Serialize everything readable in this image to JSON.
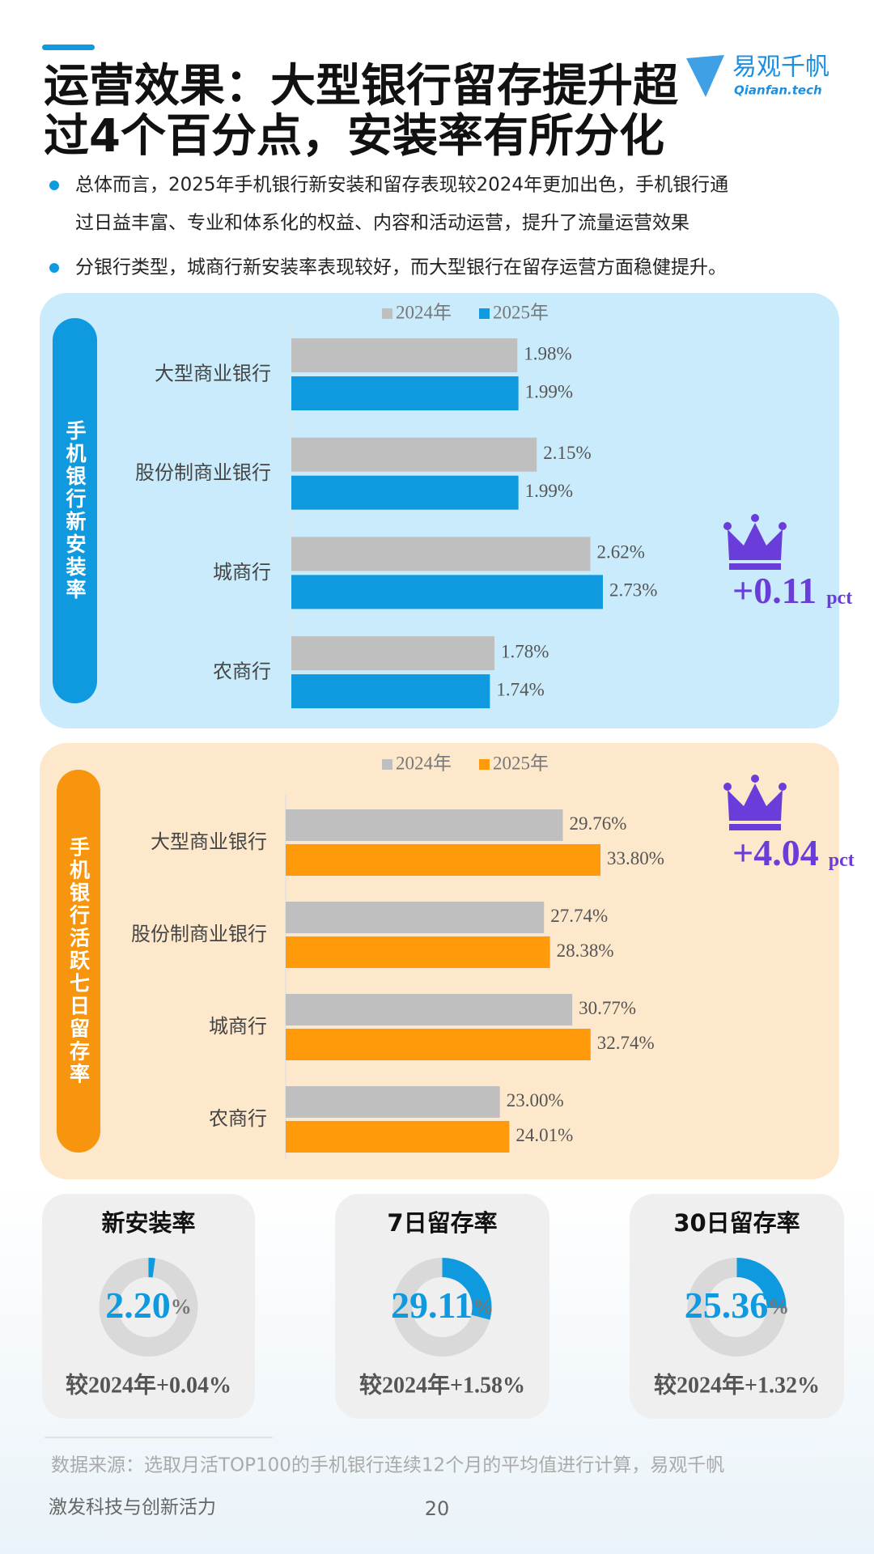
{
  "header": {
    "title_lines": [
      "运营效果：大型银行留存提升超",
      "过4个百分点，安装率有所分化"
    ],
    "logo_name": "易观千帆",
    "logo_sub": "Qianfan.tech"
  },
  "bullets": [
    [
      "总体而言，2025年手机银行新安装和留存表现较2024年更加出色，手机银行通",
      "过日益丰富、专业和体系化的权益、内容和活动运营，提升了流量运营效果"
    ],
    [
      "分银行类型，城商行新安装率表现较好，而大型银行在留存运营方面稳健提升。"
    ]
  ],
  "chart_data": [
    {
      "type": "bar",
      "orientation": "horizontal",
      "side_label": "手机银行新安装率",
      "panel_color": "#c9ebfb",
      "side_color": "#0f9ae0",
      "categories": [
        "大型商业银行",
        "股份制商业银行",
        "城商行",
        "农商行"
      ],
      "series": [
        {
          "name": "2024年",
          "color": "#bfbfbf",
          "values": [
            1.98,
            2.15,
            2.62,
            1.78
          ],
          "value_labels": [
            "1.98%",
            "2.15%",
            "2.62%",
            "1.78%"
          ]
        },
        {
          "name": "2025年",
          "color": "#0f9ae0",
          "values": [
            1.99,
            1.99,
            2.73,
            1.74
          ],
          "value_labels": [
            "1.99%",
            "1.99%",
            "2.73%",
            "1.74%"
          ]
        }
      ],
      "delta": "+0.11",
      "delta_unit": "pct",
      "delta_color": "#6a3ddb"
    },
    {
      "type": "bar",
      "orientation": "horizontal",
      "side_label": "手机银行活跃七日留存率",
      "panel_color": "#fde8cb",
      "side_color": "#f7960e",
      "categories": [
        "大型商业银行",
        "股份制商业银行",
        "城商行",
        "农商行"
      ],
      "series": [
        {
          "name": "2024年",
          "color": "#bfbfbf",
          "values": [
            29.76,
            27.74,
            30.77,
            23.0
          ],
          "value_labels": [
            "29.76%",
            "27.74%",
            "30.77%",
            "23.00%"
          ]
        },
        {
          "name": "2025年",
          "color": "#ff9a0a",
          "values": [
            33.8,
            28.38,
            32.74,
            24.01
          ],
          "value_labels": [
            "33.80%",
            "28.38%",
            "32.74%",
            "24.01%"
          ]
        }
      ],
      "delta": "+4.04",
      "delta_unit": "pct",
      "delta_color": "#6a3ddb"
    }
  ],
  "gauges": [
    {
      "title": "新安装率",
      "value": 2.2,
      "value_label": "2.20",
      "unit": "%",
      "compare": "较2024年+0.04%"
    },
    {
      "title": "7日留存率",
      "value": 29.11,
      "value_label": "29.11",
      "unit": "%",
      "compare": "较2024年+1.58%"
    },
    {
      "title": "30日留存率",
      "value": 25.36,
      "value_label": "25.36",
      "unit": "%",
      "compare": "较2024年+1.32%"
    }
  ],
  "footer": {
    "source": "数据来源：选取月活TOP100的手机银行连续12个月的平均值进行计算，易观千帆",
    "slogan": "激发科技与创新活力",
    "page": "20"
  }
}
